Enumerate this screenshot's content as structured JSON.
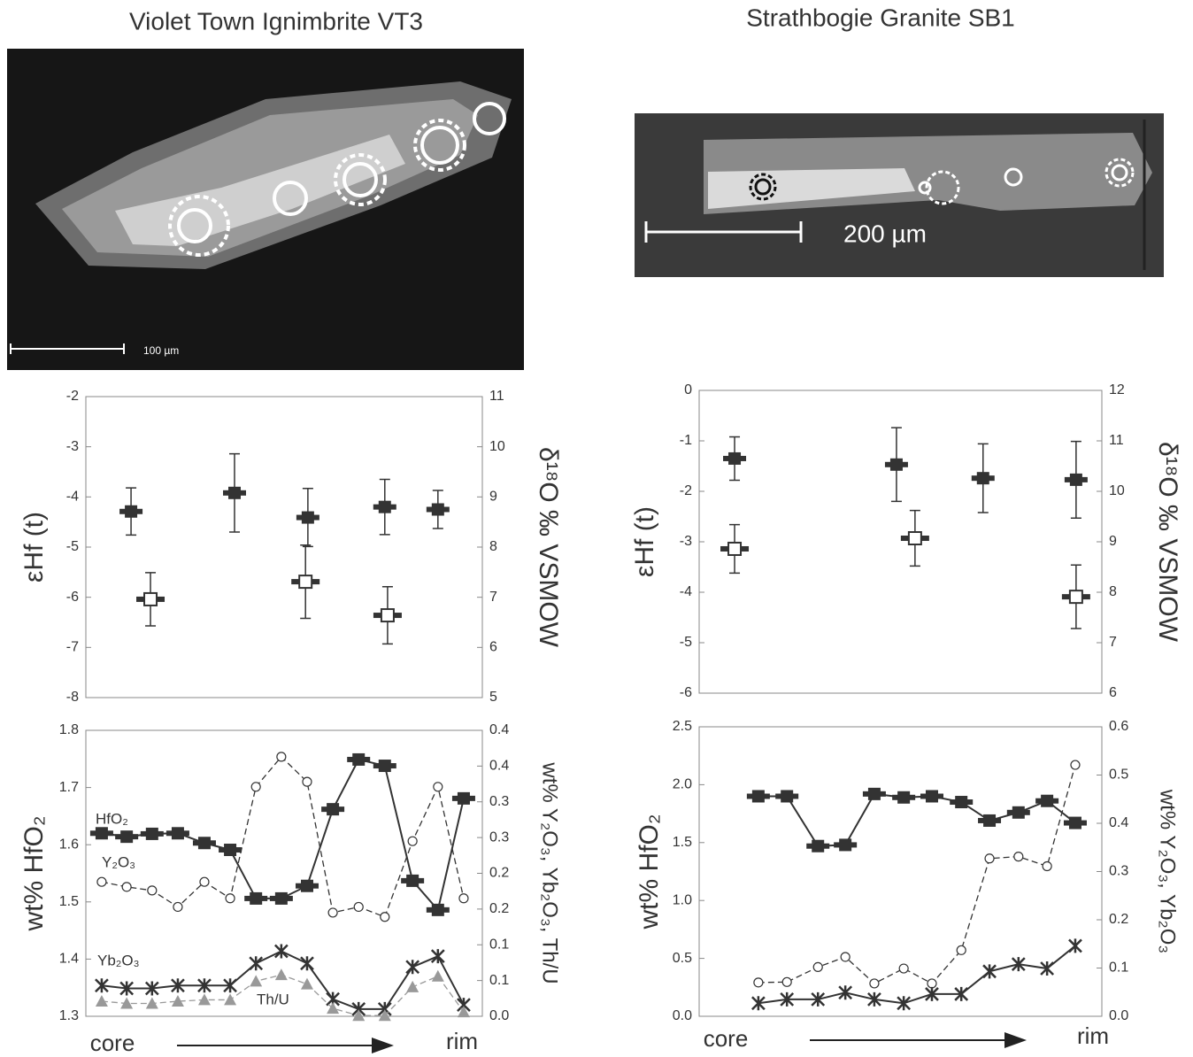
{
  "images": [
    {
      "title": "Violet Town Ignimbrite VT3",
      "scale_label": "100 µm"
    },
    {
      "title": "Strathbogie Granite SB1",
      "scale_label": "200 µm"
    }
  ],
  "chart_data": [
    {
      "type": "scatter",
      "ylabel": "εHf (t)",
      "y2label": "δ¹⁸O ‰ VSMOW",
      "xlim": [
        0,
        100
      ],
      "ylim": [
        -8,
        -2
      ],
      "yticks": [
        -8,
        -7,
        -6,
        -5,
        -4,
        -3,
        -2
      ],
      "y2lim": [
        5,
        11
      ],
      "y2ticks": [
        5,
        6,
        7,
        8,
        9,
        10,
        11
      ],
      "series": [
        {
          "marker": "square-filled",
          "color": "#333333",
          "x": [
            11.4,
            37.5,
            56.0,
            75.4,
            88.8
          ],
          "values": [
            -4.29,
            -3.92,
            -4.41,
            -4.2,
            -4.25
          ],
          "error": [
            0.47,
            0.78,
            0.58,
            0.55,
            0.38
          ]
        },
        {
          "marker": "square-open",
          "color": "#333333",
          "axis": "y2",
          "x": [
            16.3,
            55.4,
            76.1
          ],
          "values": [
            6.96,
            7.31,
            6.64
          ],
          "error": [
            0.53,
            0.73,
            0.57
          ]
        }
      ]
    },
    {
      "type": "line",
      "ylabel": "wt% HfO₂",
      "y2label": "wt% Y₂O₃, Yb₂O₃, Th/U",
      "xlabels": [
        "core",
        "rim"
      ],
      "xlim": [
        0,
        100
      ],
      "ylim": [
        1.3,
        1.8
      ],
      "yticks": [
        1.3,
        1.4,
        1.5,
        1.6,
        1.7,
        1.8
      ],
      "y2lim": [
        0,
        0.4
      ],
      "y2ticks": [
        {
          "value": 0,
          "label": "0.0"
        },
        {
          "value": 0.05,
          "label": "0.1"
        },
        0.1,
        {
          "value": 0.15,
          "label": "0.2"
        },
        0.2,
        {
          "value": 0.25,
          "label": "0.3"
        },
        0.3,
        {
          "value": 0.35,
          "label": "0.4"
        },
        0.4
      ],
      "x": [
        4.0,
        10.3,
        16.7,
        23.2,
        29.9,
        36.4,
        42.9,
        49.3,
        55.8,
        62.3,
        68.8,
        75.4,
        82.4,
        88.8,
        95.3
      ],
      "series": [
        {
          "name": "HfO₂",
          "marker": "square-filled",
          "color": "#333333",
          "values": [
            1.62,
            1.614,
            1.619,
            1.62,
            1.603,
            1.591,
            1.506,
            1.506,
            1.528,
            1.662,
            1.749,
            1.738,
            1.537,
            1.486,
            1.681
          ]
        },
        {
          "name": "Y₂O₃",
          "marker": "circle-open",
          "color": "#333333",
          "dash": true,
          "axis": "y2",
          "values": [
            0.188,
            0.181,
            0.176,
            0.153,
            0.188,
            0.165,
            0.321,
            0.363,
            0.328,
            0.145,
            0.153,
            0.139,
            0.245,
            0.321,
            0.165
          ]
        },
        {
          "name": "Yb₂O₃",
          "marker": "star",
          "color": "#333333",
          "axis": "y2",
          "values": [
            0.043,
            0.039,
            0.039,
            0.043,
            0.043,
            0.043,
            0.074,
            0.091,
            0.074,
            0.024,
            0.01,
            0.01,
            0.069,
            0.084,
            0.016
          ]
        },
        {
          "name": "Th/U",
          "marker": "triangle",
          "color": "#999999",
          "dash": true,
          "axis": "y2",
          "values": [
            0.021,
            0.018,
            0.018,
            0.021,
            0.023,
            0.023,
            0.049,
            0.058,
            0.045,
            0.011,
            0.001,
            0.001,
            0.041,
            0.056,
            0.006
          ]
        }
      ]
    },
    {
      "type": "scatter",
      "ylabel": "εHf (t)",
      "y2label": "δ¹⁸O ‰ VSMOW",
      "xlim": [
        0,
        100
      ],
      "ylim": [
        -6,
        0
      ],
      "yticks": [
        -6,
        -5,
        -4,
        -3,
        -2,
        -1,
        0
      ],
      "y2lim": [
        6,
        12
      ],
      "y2ticks": [
        6,
        7,
        8,
        9,
        10,
        11,
        12
      ],
      "series": [
        {
          "marker": "square-filled",
          "color": "#333333",
          "x": [
            8.8,
            49.0,
            70.5,
            93.6
          ],
          "values": [
            -1.35,
            -1.47,
            -1.74,
            -1.77
          ],
          "error": [
            0.43,
            0.73,
            0.68,
            0.76
          ]
        },
        {
          "marker": "square-open",
          "color": "#333333",
          "axis": "y2",
          "x": [
            8.8,
            53.6,
            93.6
          ],
          "values": [
            8.86,
            9.07,
            7.91
          ],
          "error": [
            0.48,
            0.55,
            0.63
          ]
        }
      ]
    },
    {
      "type": "line",
      "ylabel": "wt% HfO₂",
      "y2label": "wt% Y₂O₃, Yb₂O₃",
      "xlabels": [
        "core",
        "rim"
      ],
      "xlim": [
        0,
        100
      ],
      "ylim": [
        0,
        2.5
      ],
      "yticks": [
        {
          "value": 0,
          "label": "0.0"
        },
        0.5,
        {
          "value": 1,
          "label": "1.0"
        },
        1.5,
        {
          "value": 2,
          "label": "2.0"
        },
        2.5
      ],
      "y2lim": [
        0,
        0.6
      ],
      "y2ticks": [
        {
          "value": 0,
          "label": "0.0"
        },
        0.1,
        0.2,
        0.3,
        0.4,
        0.5,
        0.6
      ],
      "x": [
        14.7,
        21.8,
        29.5,
        36.3,
        43.5,
        50.8,
        57.8,
        65.1,
        72.1,
        79.3,
        86.4,
        93.4
      ],
      "series": [
        {
          "marker": "square-filled",
          "color": "#333333",
          "values": [
            1.9,
            1.9,
            1.47,
            1.48,
            1.92,
            1.89,
            1.9,
            1.85,
            1.69,
            1.76,
            1.86,
            1.67
          ]
        },
        {
          "marker": "circle-open",
          "color": "#333333",
          "dash": true,
          "axis": "y2",
          "values": [
            0.07,
            0.071,
            0.102,
            0.123,
            0.068,
            0.099,
            0.068,
            0.137,
            0.327,
            0.331,
            0.311,
            0.521
          ]
        },
        {
          "marker": "star",
          "color": "#333333",
          "axis": "y2",
          "values": [
            0.027,
            0.035,
            0.035,
            0.049,
            0.035,
            0.027,
            0.046,
            0.046,
            0.093,
            0.108,
            0.099,
            0.146
          ]
        }
      ]
    }
  ]
}
